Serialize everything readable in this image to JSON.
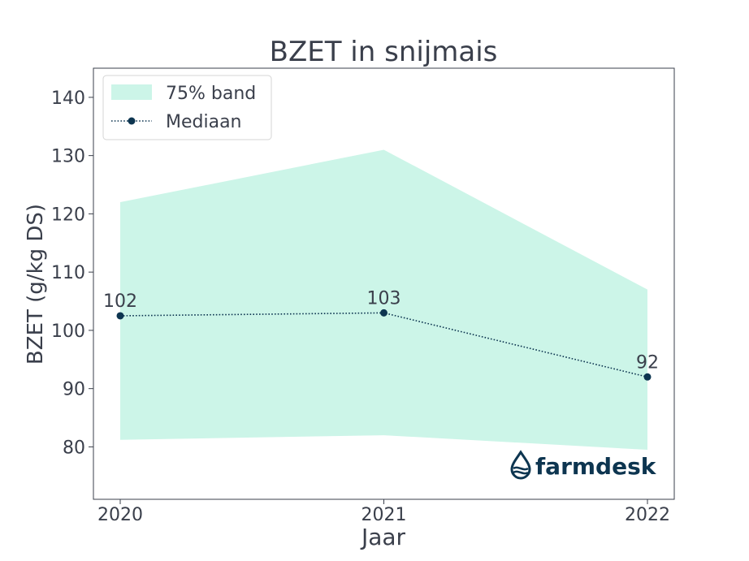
{
  "chart_data": {
    "type": "line",
    "title": "BZET in snijmais",
    "xlabel": "Jaar",
    "ylabel": "BZET (g/kg DS)",
    "x": [
      "2020",
      "2021",
      "2022"
    ],
    "ylim": [
      71,
      145
    ],
    "yticks": [
      80,
      90,
      100,
      110,
      120,
      130,
      140
    ],
    "grid": false,
    "legend_position": "top-left",
    "band": {
      "name": "75% band",
      "lower": [
        81.2,
        82.0,
        79.5
      ],
      "upper": [
        122.0,
        131.0,
        107.0
      ],
      "color": "#ccf5e8"
    },
    "series": [
      {
        "name": "Mediaan",
        "values": [
          102.5,
          103.0,
          92.0
        ],
        "labels": [
          "102",
          "103",
          "92"
        ],
        "color": "#0d3550",
        "style": "dotted-with-markers"
      }
    ]
  },
  "watermark": {
    "text": "farmdesk",
    "icon": "water-drop-icon",
    "color": "#0d3550"
  },
  "colors": {
    "text": "#3a3f4b",
    "axes": "#3a3f4b",
    "background": "#ffffff"
  }
}
